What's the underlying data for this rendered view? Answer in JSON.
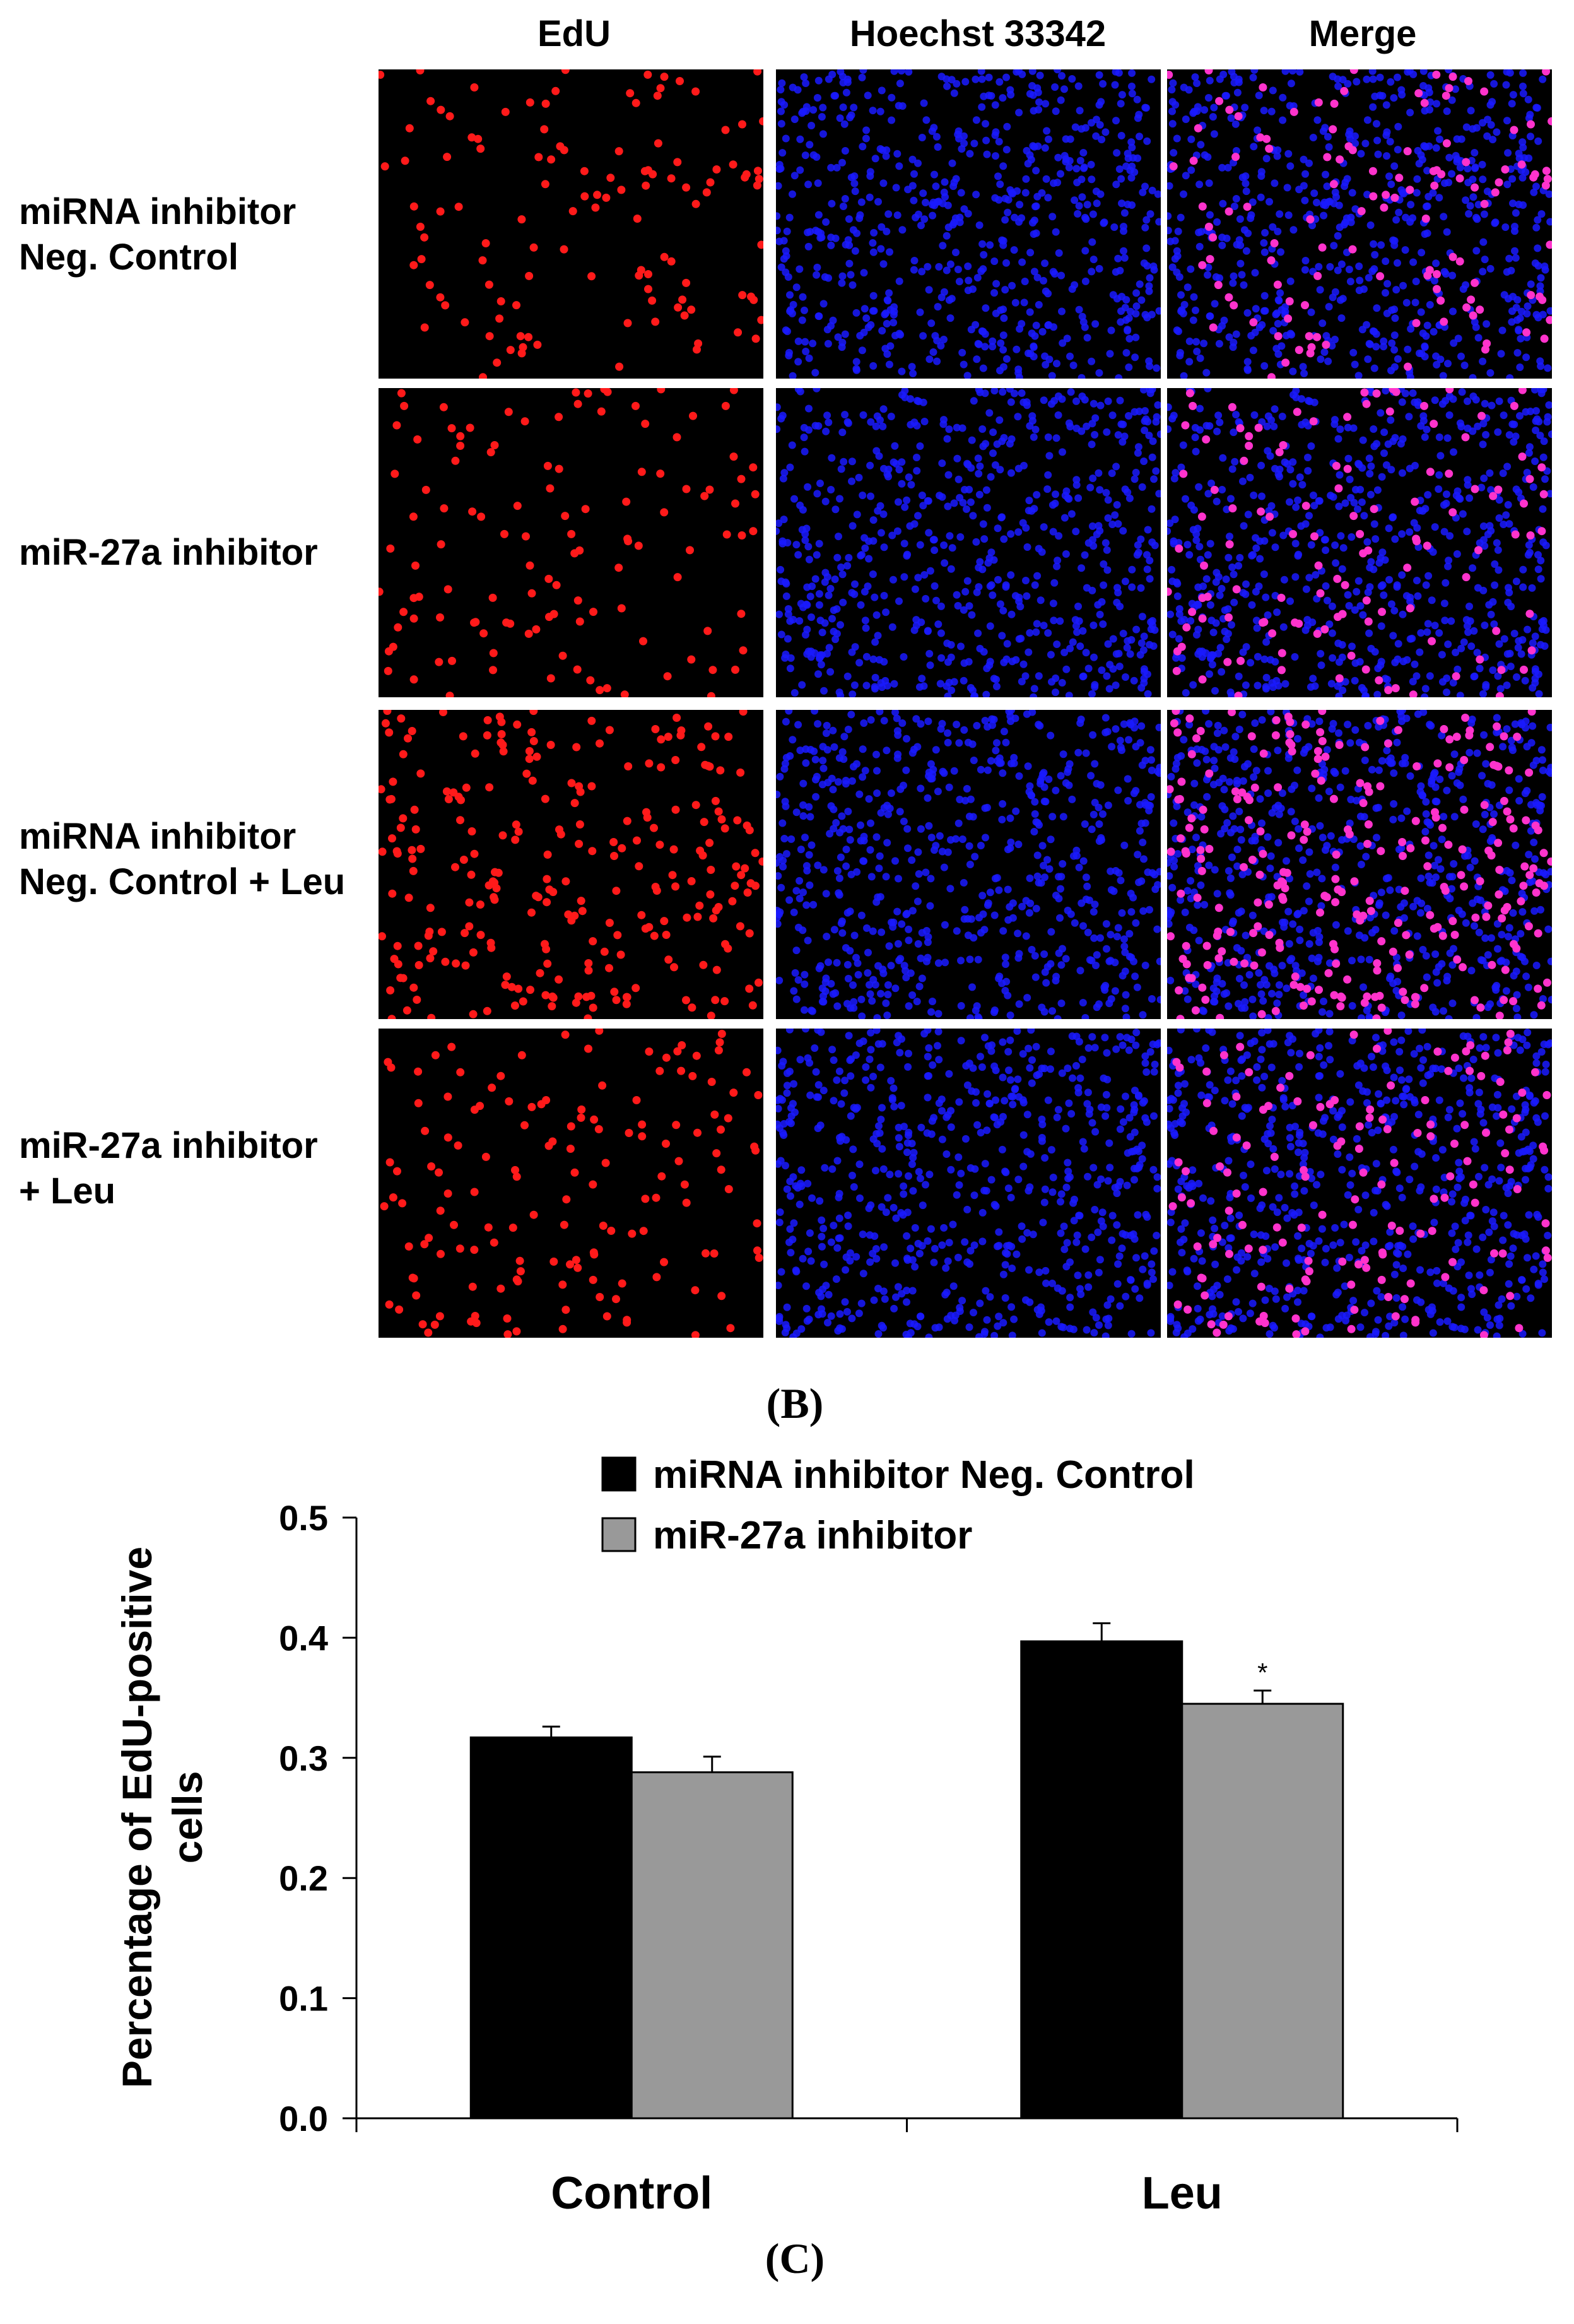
{
  "micrograph": {
    "column_headers": [
      "EdU",
      "Hoechst 33342",
      "Merge"
    ],
    "row_headers": [
      "miRNA inhibitor\nNeg. Control",
      "miR-27a inhibitor",
      "miRNA inhibitor\nNeg. Control + Leu",
      "miR-27a inhibitor\n+ Leu"
    ],
    "panel_label": "(B)",
    "channel_colors": {
      "edu": "#ff1a1a",
      "hoechst": "#1a1aff",
      "merge_nuclei": "#ff33cc"
    }
  },
  "chart_panel_label": "(C)",
  "chart_data": {
    "type": "bar",
    "categories": [
      "Control",
      "Leu"
    ],
    "series": [
      {
        "name": "miRNA inhibitor Neg. Control",
        "values": [
          0.317,
          0.397
        ],
        "errors": [
          0.009,
          0.015
        ],
        "color": "#000000"
      },
      {
        "name": "miR-27a inhibitor",
        "values": [
          0.288,
          0.345
        ],
        "errors": [
          0.013,
          0.011
        ],
        "color": "#999999"
      }
    ],
    "significance": [
      "",
      "*"
    ],
    "ylabel": "Percentage of EdU-positive cells",
    "ylim": [
      0.0,
      0.5
    ],
    "yticks": [
      "0.0",
      "0.1",
      "0.2",
      "0.3",
      "0.4",
      "0.5"
    ],
    "legend_position": "top",
    "grid": false
  }
}
